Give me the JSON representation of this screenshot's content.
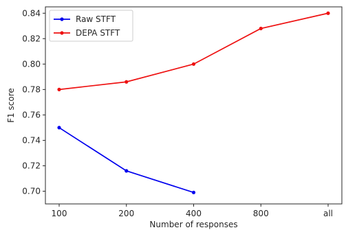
{
  "chart_data": {
    "type": "line",
    "categories": [
      "100",
      "200",
      "400",
      "800",
      "all"
    ],
    "xlabel": "Number of responses",
    "ylabel": "F1 score",
    "ylim": [
      0.69,
      0.845
    ],
    "yticks": [
      "0.70",
      "0.72",
      "0.74",
      "0.76",
      "0.78",
      "0.80",
      "0.82",
      "0.84"
    ],
    "grid": false,
    "legend_position": "top-left",
    "series": [
      {
        "name": "Raw STFT",
        "color": "#0000ee",
        "values": [
          0.75,
          0.716,
          0.699,
          null,
          null
        ]
      },
      {
        "name": "DEPA STFT",
        "color": "#ee1111",
        "values": [
          0.78,
          0.786,
          0.8,
          0.828,
          0.84
        ]
      }
    ]
  }
}
